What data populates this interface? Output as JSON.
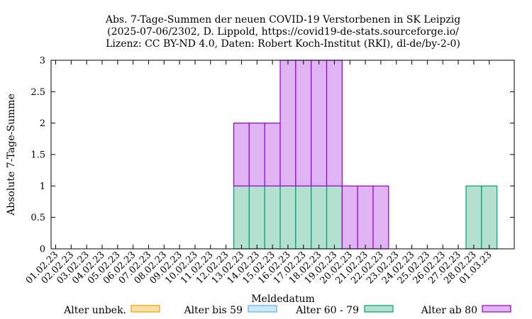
{
  "chart_data": {
    "type": "bar",
    "stacked": true,
    "title": [
      "Abs. 7-Tage-Summen der neuen COVID-19 Verstorbenen in SK Leipzig",
      "(2025-07-06/2302, D. Lippold, https://covid19-de-stats.sourceforge.io/",
      "Lizenz: CC BY-ND 4.0, Daten: Robert Koch-Institut (RKI), dl-de/by-2-0)"
    ],
    "xlabel": "Meldedatum",
    "ylabel": "Absolute 7-Tage-Summe",
    "ylim": [
      0,
      3
    ],
    "yticks": [
      "0",
      "0.5",
      "1",
      "1.5",
      "2",
      "2.5",
      "3"
    ],
    "grid": false,
    "legend_position": "bottom",
    "categories": [
      "01.02.23",
      "02.02.23",
      "03.02.23",
      "04.02.23",
      "05.02.23",
      "06.02.23",
      "07.02.23",
      "08.02.23",
      "09.02.23",
      "10.02.23",
      "11.02.23",
      "12.02.23",
      "13.02.23",
      "14.02.23",
      "15.02.23",
      "16.02.23",
      "17.02.23",
      "18.02.23",
      "19.02.23",
      "20.02.23",
      "21.02.23",
      "22.02.23",
      "23.02.23",
      "24.02.23",
      "25.02.23",
      "26.02.23",
      "27.02.23",
      "28.02.23",
      "01.03.23"
    ],
    "series": [
      {
        "name": "Alter unbek.",
        "fill": "#fde0a6",
        "stroke": "#e69f00",
        "values": [
          0,
          0,
          0,
          0,
          0,
          0,
          0,
          0,
          0,
          0,
          0,
          0,
          0,
          0,
          0,
          0,
          0,
          0,
          0,
          0,
          0,
          0,
          0,
          0,
          0,
          0,
          0,
          0,
          0
        ]
      },
      {
        "name": "Alter bis 59",
        "fill": "#cfe8f7",
        "stroke": "#56b4e9",
        "values": [
          0,
          0,
          0,
          0,
          0,
          0,
          0,
          0,
          0,
          0,
          0,
          0,
          0,
          0,
          0,
          0,
          0,
          0,
          0,
          0,
          0,
          0,
          0,
          0,
          0,
          0,
          0,
          0,
          0
        ]
      },
      {
        "name": "Alter 60 - 79",
        "fill": "#b3e0cf",
        "stroke": "#009e73",
        "values": [
          0,
          0,
          0,
          0,
          0,
          0,
          0,
          0,
          0,
          0,
          0,
          0,
          1,
          1,
          1,
          1,
          1,
          1,
          1,
          0,
          0,
          0,
          0,
          0,
          0,
          0,
          0,
          1,
          1
        ]
      },
      {
        "name": "Alter ab 80",
        "fill": "#e0b3f2",
        "stroke": "#9400d3",
        "values": [
          0,
          0,
          0,
          0,
          0,
          0,
          0,
          0,
          0,
          0,
          0,
          0,
          1,
          1,
          1,
          2,
          2,
          2,
          2,
          1,
          1,
          1,
          0,
          0,
          0,
          0,
          0,
          0,
          0
        ]
      }
    ]
  }
}
